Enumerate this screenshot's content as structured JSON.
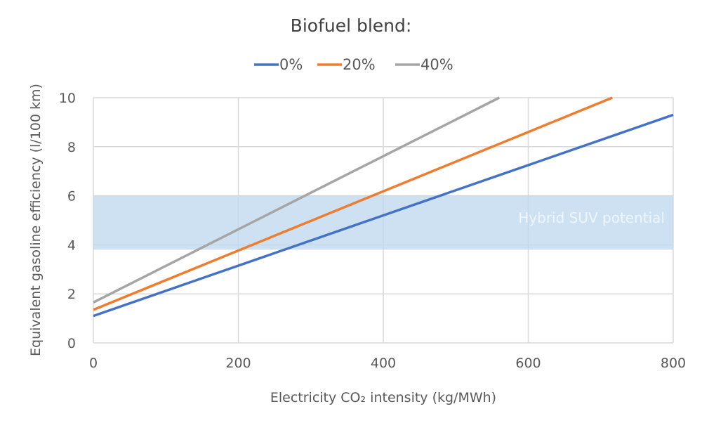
{
  "chart_data": {
    "type": "line",
    "title": "Biofuel blend:",
    "xlabel": "Electricity CO₂ intensity (kg/MWh)",
    "ylabel": "Equivalent  gasoline efficiency (l/100 km)",
    "xlim": [
      0,
      800
    ],
    "ylim": [
      0,
      10
    ],
    "xticks": [
      0,
      200,
      400,
      600,
      800
    ],
    "yticks": [
      0,
      2,
      4,
      6,
      8,
      10
    ],
    "grid": true,
    "legend_position": "top-center",
    "series": [
      {
        "name": "0%",
        "color": "#4472c4",
        "x": [
          0,
          800
        ],
        "y": [
          1.1,
          9.3
        ]
      },
      {
        "name": "20%",
        "color": "#ed7d31",
        "x": [
          0,
          716
        ],
        "y": [
          1.35,
          10
        ]
      },
      {
        "name": "40%",
        "color": "#a5a5a5",
        "x": [
          0,
          560
        ],
        "y": [
          1.65,
          10
        ]
      }
    ],
    "annotations": [
      {
        "type": "band",
        "label": "Hybrid SUV potential",
        "y_range": [
          3.8,
          6.0
        ],
        "color": "#bdd7ee"
      }
    ]
  }
}
